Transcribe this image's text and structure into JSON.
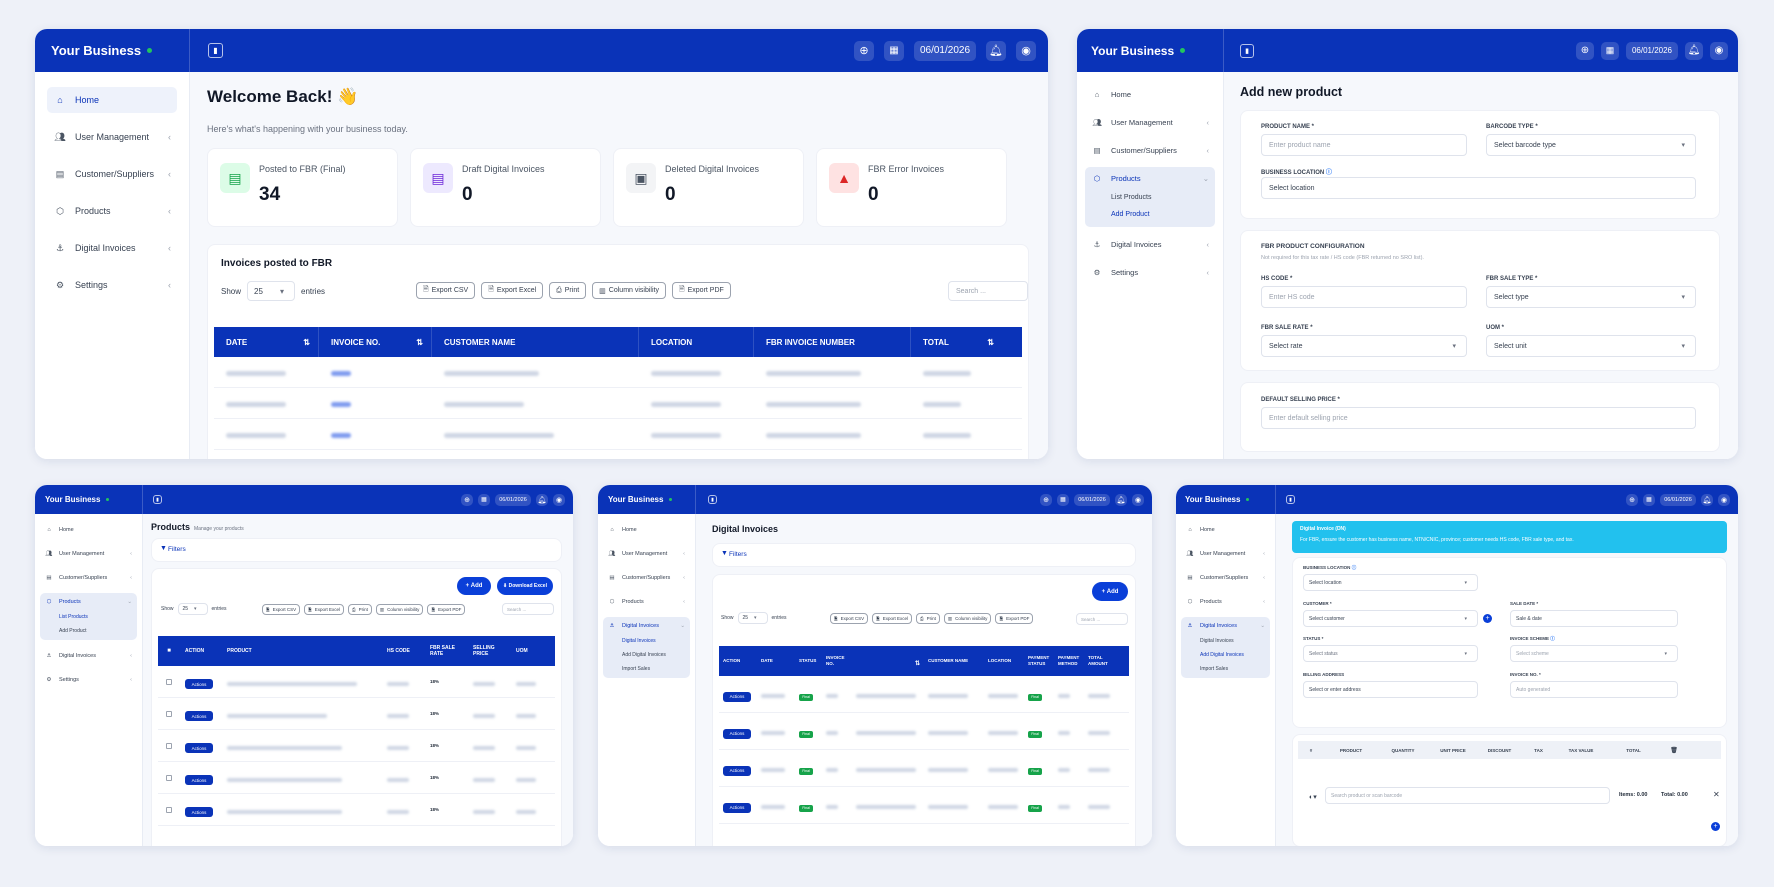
{
  "brand": "Your Business",
  "date": "06/01/2026",
  "sidebar": {
    "home": "Home",
    "users": "User Management",
    "customers": "Customer/Suppliers",
    "products": "Products",
    "invoices": "Digital Invoices",
    "settings": "Settings"
  },
  "products_sub": {
    "list": "List Products",
    "add": "Add Product"
  },
  "invoices_sub": {
    "digital": "Digital Invoices",
    "add": "Add Digital Invoices",
    "import": "Import Sales"
  },
  "dashboard": {
    "title": "Welcome Back! 👋",
    "subtitle": "Here's what's happening with your business today.",
    "stats": [
      {
        "label": "Posted to FBR (Final)",
        "value": "34"
      },
      {
        "label": "Draft Digital Invoices",
        "value": "0"
      },
      {
        "label": "Deleted Digital Invoices",
        "value": "0"
      },
      {
        "label": "FBR Error Invoices",
        "value": "0"
      }
    ],
    "section_title": "Invoices posted to FBR",
    "show": "Show",
    "entries": "entries",
    "page_size": "25",
    "export_buttons": [
      "Export CSV",
      "Export Excel",
      "Print",
      "Column visibility",
      "Export PDF"
    ],
    "search_placeholder": "Search ...",
    "columns": [
      "DATE",
      "INVOICE NO.",
      "CUSTOMER NAME",
      "LOCATION",
      "FBR INVOICE NUMBER",
      "TOTAL"
    ]
  },
  "add_product": {
    "title": "Add new product",
    "product_name_label": "PRODUCT NAME *",
    "product_name_ph": "Enter product name",
    "barcode_label": "BARCODE TYPE *",
    "barcode_ph": "Select barcode type",
    "location_label": "BUSINESS LOCATION",
    "location_ph": "Select location",
    "fbr_title": "FBR PRODUCT CONFIGURATION",
    "fbr_note": "Not required for this tax rate / HS code (FBR returned no SRO list).",
    "hs_label": "HS CODE *",
    "hs_ph": "Enter HS code",
    "sale_type_label": "FBR SALE TYPE *",
    "sale_type_ph": "Select type",
    "rate_label": "FBR SALE RATE *",
    "rate_ph": "Select rate",
    "uom_label": "UOM *",
    "uom_ph": "Select unit",
    "price_label": "DEFAULT SELLING PRICE *",
    "price_ph": "Enter default selling price"
  },
  "products_page": {
    "title": "Products",
    "subtitle": "Manage your products",
    "filters": "Filters",
    "add": "Add",
    "download": "Download Excel",
    "columns": [
      "ACTION",
      "PRODUCT",
      "HS CODE",
      "FBR SALE RATE",
      "SELLING PRICE",
      "UOM"
    ],
    "rates": [
      "18%",
      "18%",
      "18%",
      "18%",
      "18%"
    ],
    "actions": "Actions"
  },
  "invoices_page": {
    "title": "Digital Invoices",
    "filters": "Filters",
    "add": "Add",
    "columns": [
      "ACTION",
      "DATE",
      "STATUS",
      "INVOICE NO.",
      "",
      "CUSTOMER NAME",
      "LOCATION",
      "PAYMENT STATUS",
      "PAYMENT METHOD",
      "TOTAL AMOUNT"
    ],
    "status": "Final",
    "actions": "Actions"
  },
  "add_invoice": {
    "banner_title": "Digital Invoice (DN)",
    "banner_text": "For FBR, ensure the customer has business name, NTN/CNIC, province; customer needs HS code, FBR sale type, and tax.",
    "location_label": "BUSINESS LOCATION",
    "location_ph": "Select location",
    "customer_label": "CUSTOMER *",
    "customer_ph": "Select customer",
    "sale_date_label": "SALE DATE *",
    "sale_date_ph": "Sale & date",
    "status_label": "STATUS *",
    "status_ph": "Select status",
    "scheme_label": "INVOICE SCHEME",
    "scheme_ph": "Select scheme",
    "billing_label": "BILLING ADDRESS",
    "billing_ph": "Select or enter address",
    "invno_label": "INVOICE NO. *",
    "invno_ph": "Auto generated",
    "columns": [
      "#",
      "PRODUCT",
      "QUANTITY",
      "UNIT PRICE",
      "DISCOUNT",
      "TAX",
      "TAX VALUE",
      "TOTAL"
    ],
    "search_ph": "Search product or scan barcode",
    "items": "Items: 0.00",
    "total": "Total: 0.00"
  },
  "colors": {
    "primary": "#0a33b8",
    "success": "#16a34a",
    "info": "#22c1ee",
    "danger": "#dc2626"
  }
}
